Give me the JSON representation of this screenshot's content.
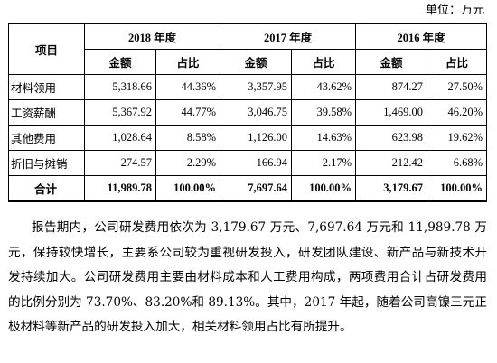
{
  "unit_label": "单位：万元",
  "table": {
    "header": {
      "item": "项目",
      "years": [
        "2018 年度",
        "2017 年度",
        "2016 年度"
      ],
      "amount": "金额",
      "ratio": "占比"
    },
    "rows": [
      {
        "label": "材料领用",
        "values": [
          "5,318.66",
          "44.36%",
          "3,357.95",
          "43.62%",
          "874.27",
          "27.50%"
        ]
      },
      {
        "label": "工资薪酬",
        "values": [
          "5,367.92",
          "44.77%",
          "3,046.75",
          "39.58%",
          "1,469.00",
          "46.20%"
        ]
      },
      {
        "label": "其他费用",
        "values": [
          "1,028.64",
          "8.58%",
          "1,126.00",
          "14.63%",
          "623.98",
          "19.62%"
        ]
      },
      {
        "label": "折旧与摊销",
        "values": [
          "274.57",
          "2.29%",
          "166.94",
          "2.17%",
          "212.42",
          "6.68%"
        ]
      }
    ],
    "total": {
      "label": "合计",
      "values": [
        "11,989.78",
        "100.00%",
        "7,697.64",
        "100.00%",
        "3,179.67",
        "100.00%"
      ]
    }
  },
  "paragraph": "报告期内，公司研发费用依次为 3,179.67 万元、7,697.64 万元和 11,989.78 万元，保持较快增长，主要系公司较为重视研发投入，研发团队建设、新产品与新技术开发持续加大。公司研发费用主要由材料成本和人工费用构成，两项费用合计占研发费用的比例分别为 73.70%、83.20%和 89.13%。其中，2017 年起，随着公司高镍三元正极材料等新产品的研发投入加大，相关材料领用占比有所提升。"
}
